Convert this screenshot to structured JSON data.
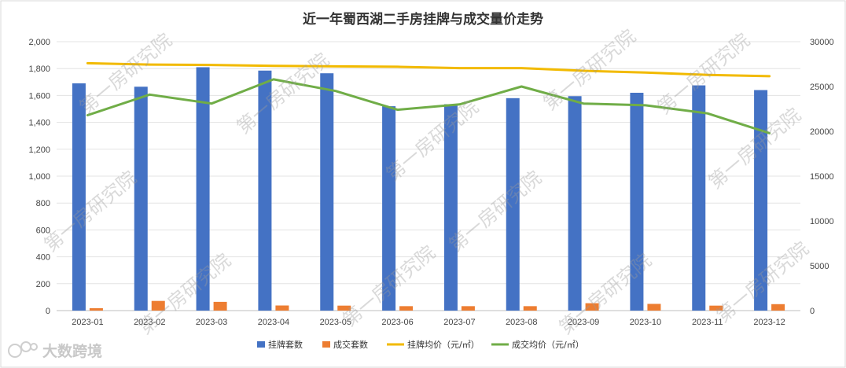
{
  "chart_data": {
    "type": "bar",
    "title": "近一年蜀西湖二手房挂牌与成交量价走势",
    "categories": [
      "2023-01",
      "2023-02",
      "2023-03",
      "2023-04",
      "2023-05",
      "2023-06",
      "2023-07",
      "2023-08",
      "2023-09",
      "2023-10",
      "2023-11",
      "2023-12"
    ],
    "series": [
      {
        "name": "挂牌套数",
        "type": "bar",
        "axis": "left",
        "color": "#4472C4",
        "values": [
          1690,
          1665,
          1810,
          1785,
          1765,
          1520,
          1535,
          1580,
          1595,
          1620,
          1675,
          1640
        ]
      },
      {
        "name": "成交套数",
        "type": "bar",
        "axis": "left",
        "color": "#ED7D31",
        "values": [
          18,
          72,
          65,
          38,
          37,
          33,
          33,
          33,
          55,
          50,
          37,
          48
        ]
      },
      {
        "name": "挂牌均价（元/㎡）",
        "type": "line",
        "axis": "right",
        "color": "#F2BA00",
        "values": [
          27600,
          27450,
          27400,
          27300,
          27250,
          27200,
          27050,
          27050,
          26750,
          26550,
          26300,
          26150
        ]
      },
      {
        "name": "成交均价（元/㎡）",
        "type": "line",
        "axis": "right",
        "color": "#70AD47",
        "values": [
          21800,
          24100,
          23100,
          25800,
          24500,
          22400,
          23000,
          25000,
          23100,
          22900,
          22000,
          19800
        ]
      }
    ],
    "ylim_left": [
      0,
      2000
    ],
    "yticks_left": [
      "0",
      "200",
      "400",
      "600",
      "800",
      "1,000",
      "1,200",
      "1,400",
      "1,600",
      "1,800",
      "2,000"
    ],
    "ylim_right": [
      0,
      30000
    ],
    "yticks_right": [
      "0",
      "5000",
      "10000",
      "15000",
      "20000",
      "25000",
      "30000"
    ],
    "grid": true,
    "legend_position": "bottom"
  },
  "watermark_text": "第一房研究院",
  "brand_text": "大数跨境"
}
